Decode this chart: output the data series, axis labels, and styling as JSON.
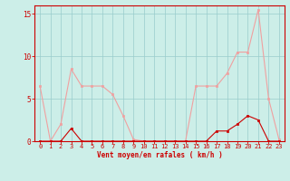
{
  "hours": [
    0,
    1,
    2,
    3,
    4,
    5,
    6,
    7,
    8,
    9,
    10,
    11,
    12,
    13,
    14,
    15,
    16,
    17,
    18,
    19,
    20,
    21,
    22,
    23
  ],
  "rafales": [
    6.5,
    0,
    2.0,
    8.5,
    6.5,
    6.5,
    6.5,
    5.5,
    3.0,
    0.2,
    0,
    0,
    0,
    0,
    0,
    6.5,
    6.5,
    6.5,
    8.0,
    10.5,
    10.5,
    15.5,
    5.0,
    0.2
  ],
  "moyen": [
    0,
    0,
    0,
    1.5,
    0,
    0,
    0,
    0,
    0,
    0,
    0,
    0,
    0,
    0,
    0,
    0,
    0,
    1.2,
    1.2,
    2.0,
    3.0,
    2.5,
    0,
    0
  ],
  "rafales_color": "#f0a0a0",
  "moyen_color": "#cc0000",
  "bg_color": "#cceee8",
  "grid_color": "#99cccc",
  "axis_label_color": "#cc0000",
  "tick_color": "#cc0000",
  "spine_color": "#cc0000",
  "xlabel": "Vent moyen/en rafales ( km/h )",
  "ylim": [
    0,
    16
  ],
  "yticks": [
    0,
    5,
    10,
    15
  ],
  "xlim": [
    -0.5,
    23.5
  ],
  "xlabel_fontsize": 5.5,
  "tick_fontsize": 5,
  "ytick_fontsize": 5.5
}
